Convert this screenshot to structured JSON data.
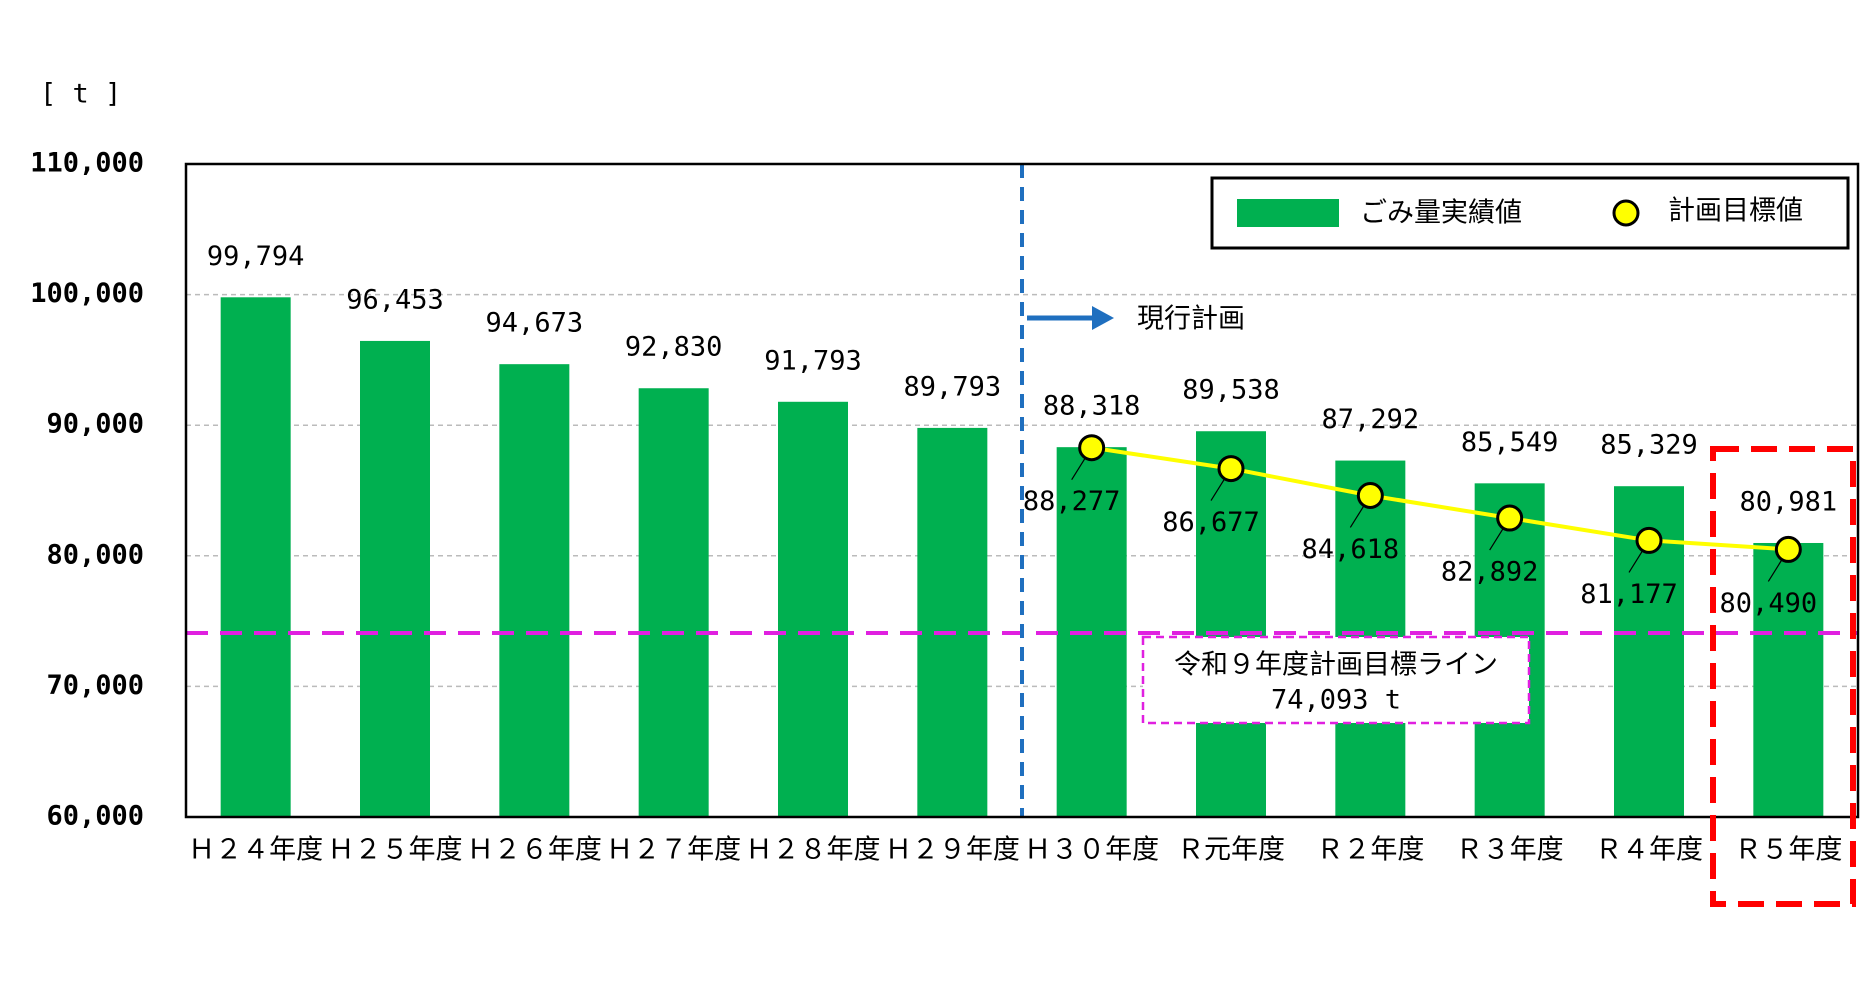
{
  "chart_data": {
    "type": "bar",
    "y_axis_label": "[ t ]",
    "categories": [
      "Ｈ２４年度",
      "Ｈ２５年度",
      "Ｈ２６年度",
      "Ｈ２７年度",
      "Ｈ２８年度",
      "Ｈ２９年度",
      "Ｈ３０年度",
      "Ｒ元年度",
      "Ｒ２年度",
      "Ｒ３年度",
      "Ｒ４年度",
      "Ｒ５年度"
    ],
    "series": [
      {
        "name": "ごみ量実績値",
        "type": "bar",
        "color": "#00b050",
        "values": [
          99794,
          96453,
          94673,
          92830,
          91793,
          89793,
          88318,
          89538,
          87292,
          85549,
          85329,
          80981
        ],
        "value_labels": [
          "99,794",
          "96,453",
          "94,673",
          "92,830",
          "91,793",
          "89,793",
          "88,318",
          "89,538",
          "87,292",
          "85,549",
          "85,329",
          "80,981"
        ]
      },
      {
        "name": "計画目標値",
        "type": "line",
        "color": "#ffff00",
        "values": [
          null,
          null,
          null,
          null,
          null,
          null,
          88277,
          86677,
          84618,
          82892,
          81177,
          80490
        ],
        "value_labels": [
          null,
          null,
          null,
          null,
          null,
          null,
          "88,277",
          "86,677",
          "84,618",
          "82,892",
          "81,177",
          "80,490"
        ]
      }
    ],
    "ylim": [
      60000,
      110000
    ],
    "yticks": [
      {
        "value": 60000,
        "label": "60,000"
      },
      {
        "value": 70000,
        "label": "70,000"
      },
      {
        "value": 80000,
        "label": "80,000"
      },
      {
        "value": 90000,
        "label": "90,000"
      },
      {
        "value": 100000,
        "label": "100,000"
      },
      {
        "value": 110000,
        "label": "110,000"
      }
    ],
    "grid": true,
    "legend": "upper right",
    "plan_annotation": "現行計画",
    "target": {
      "name": "令和９年度計画目標ライン",
      "value": 74093,
      "label": "74,093 t",
      "color": "#e020e0"
    }
  }
}
